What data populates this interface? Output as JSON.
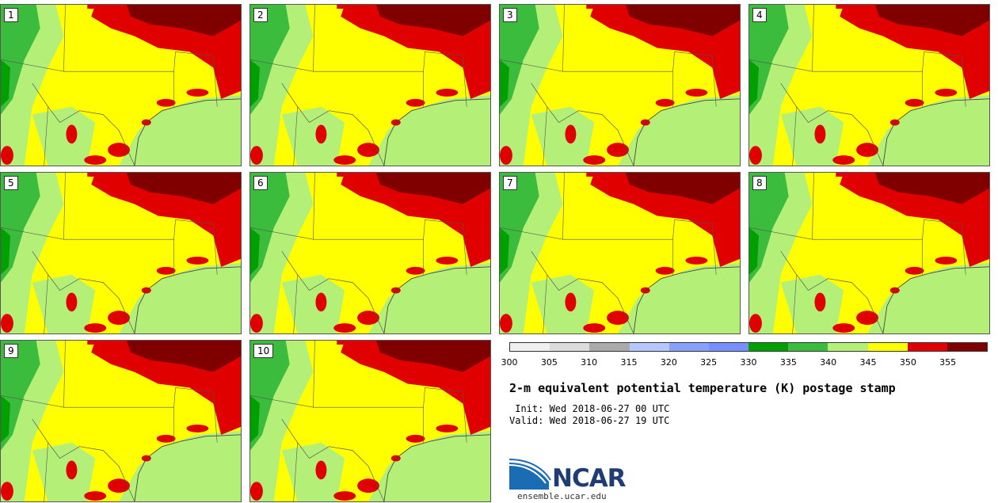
{
  "panels": [
    {
      "label": "1"
    },
    {
      "label": "2"
    },
    {
      "label": "3"
    },
    {
      "label": "4"
    },
    {
      "label": "5"
    },
    {
      "label": "6"
    },
    {
      "label": "7"
    },
    {
      "label": "8"
    },
    {
      "label": "9"
    },
    {
      "label": "10"
    }
  ],
  "colorbar": {
    "colors": [
      "#f0f0f0",
      "#dcdcdc",
      "#aaaaaa",
      "#b4c8ff",
      "#8aa0ff",
      "#7890ff",
      "#00a000",
      "#3cbc3c",
      "#b4f078",
      "#ffff00",
      "#e00000",
      "#800000"
    ],
    "ticks": [
      "300",
      "305",
      "310",
      "315",
      "320",
      "325",
      "330",
      "335",
      "340",
      "345",
      "350",
      "355"
    ]
  },
  "title": "2-m equivalent potential temperature (K) postage stamp",
  "init": " Init: Wed 2018-06-27 00 UTC",
  "valid": "Valid: Wed 2018-06-27 19 UTC",
  "logo": {
    "text": "NCAR",
    "url": "ensemble.ucar.edu"
  }
}
